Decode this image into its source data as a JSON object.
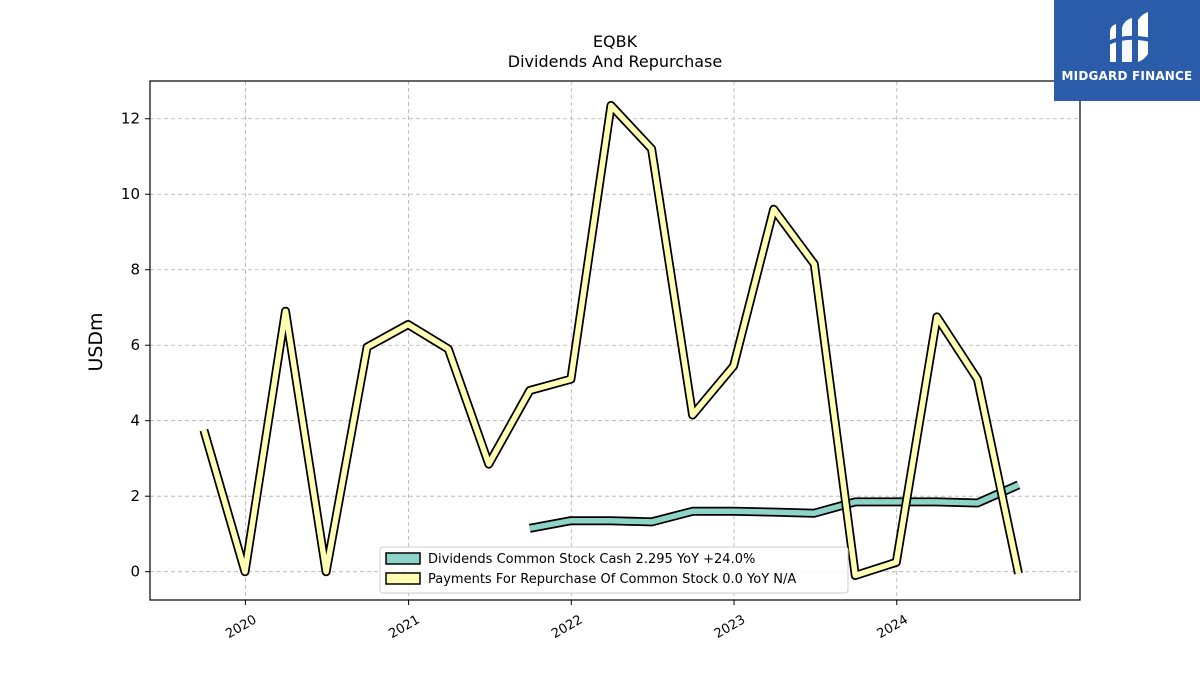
{
  "chart_data": {
    "type": "line",
    "title": "EQBK",
    "subtitle": "Dividends And Repurchase",
    "ylabel": "USDm",
    "xlabel": "",
    "ylim": [
      -0.75,
      13.0
    ],
    "xlim": [
      "2019-06-01",
      "2025-02-15"
    ],
    "yticks": [
      0,
      2,
      4,
      6,
      8,
      10,
      12
    ],
    "xticks": [
      "2020",
      "2021",
      "2022",
      "2023",
      "2024"
    ],
    "grid": true,
    "legend_position": "lower-center",
    "series": [
      {
        "name": "Dividends Common Stock Cash  2.295 YoY +24.0%",
        "color": "#8dd3c7",
        "x": [
          "2021-09-30",
          "2021-12-31",
          "2022-03-31",
          "2022-06-30",
          "2022-09-30",
          "2022-12-31",
          "2023-03-31",
          "2023-06-30",
          "2023-09-30",
          "2023-12-31",
          "2024-03-31",
          "2024-06-30",
          "2024-09-30"
        ],
        "values": [
          1.15,
          1.35,
          1.35,
          1.32,
          1.6,
          1.6,
          1.58,
          1.55,
          1.85,
          1.85,
          1.85,
          1.82,
          2.3
        ]
      },
      {
        "name": "Payments For Repurchase Of Common Stock  0.0 YoY N/A",
        "color": "#ffffb3",
        "x": [
          "2019-09-30",
          "2019-12-31",
          "2020-03-31",
          "2020-06-30",
          "2020-09-30",
          "2020-12-31",
          "2021-03-31",
          "2021-06-30",
          "2021-09-30",
          "2021-12-31",
          "2022-03-31",
          "2022-06-30",
          "2022-09-30",
          "2022-12-31",
          "2023-03-31",
          "2023-06-30",
          "2023-09-30",
          "2023-12-31",
          "2024-03-31",
          "2024-06-30",
          "2024-09-30"
        ],
        "values": [
          3.75,
          0.0,
          6.9,
          0.0,
          5.95,
          6.55,
          5.9,
          2.85,
          4.8,
          5.1,
          12.35,
          11.2,
          4.15,
          5.45,
          9.6,
          8.15,
          -0.1,
          0.25,
          6.75,
          5.1,
          -0.05
        ]
      }
    ]
  },
  "logo": {
    "text": "MIDGARD FINANCE"
  }
}
